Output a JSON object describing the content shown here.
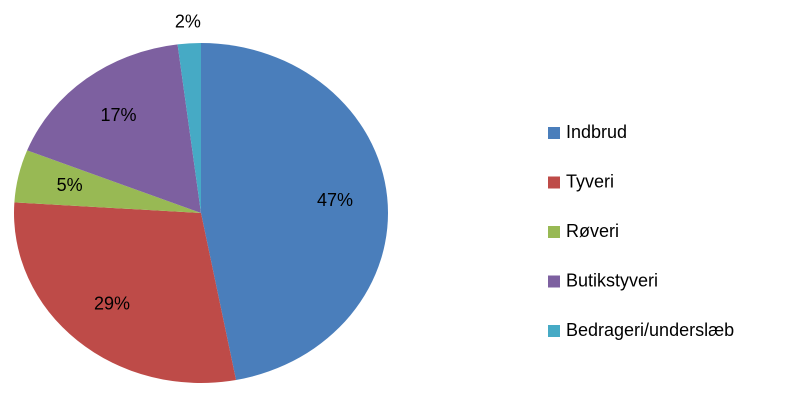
{
  "chart_data": {
    "type": "pie",
    "categories": [
      "Indbrud",
      "Tyveri",
      "Røveri",
      "Butikstyveri",
      "Bedrageri/underslæb"
    ],
    "values": [
      47,
      29,
      5,
      17,
      2
    ],
    "value_labels": [
      "47%",
      "29%",
      "5%",
      "17%",
      "2%"
    ],
    "colors": [
      "#4a7ebb",
      "#be4b48",
      "#98b954",
      "#7d60a0",
      "#46aac5"
    ],
    "legend": "right"
  }
}
